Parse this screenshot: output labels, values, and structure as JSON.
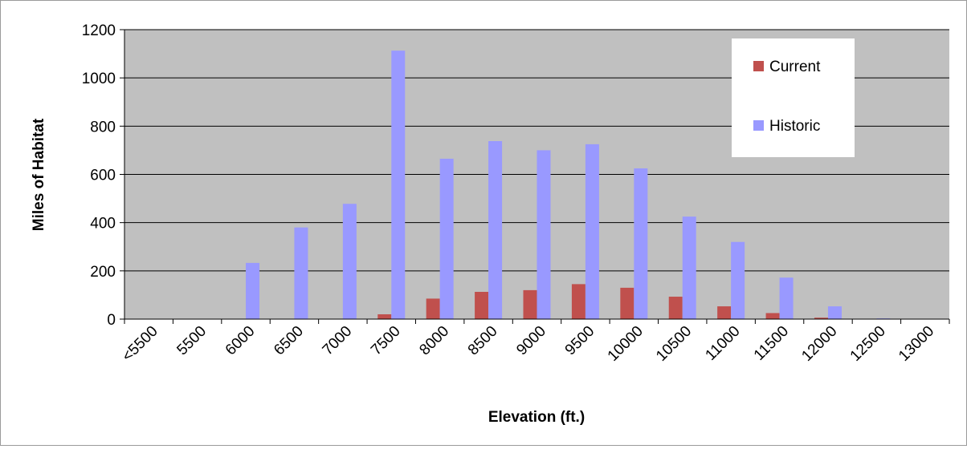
{
  "chart_data": {
    "type": "bar",
    "title": "",
    "xlabel": "Elevation (ft.)",
    "ylabel": "Miles of Habitat",
    "categories": [
      "<5500",
      "5500",
      "6000",
      "6500",
      "7000",
      "7500",
      "8000",
      "8500",
      "9000",
      "9500",
      "10000",
      "10500",
      "11000",
      "11500",
      "12000",
      "12500",
      "13000"
    ],
    "series": [
      {
        "name": "Current",
        "color": "#c0504d",
        "values": [
          0,
          0,
          0,
          0,
          0,
          20,
          85,
          113,
          120,
          145,
          130,
          93,
          53,
          25,
          6,
          0,
          0
        ]
      },
      {
        "name": "Historic",
        "color": "#9999ff",
        "values": [
          0,
          0,
          233,
          380,
          478,
          1113,
          665,
          738,
          700,
          725,
          625,
          425,
          320,
          172,
          53,
          3,
          0
        ]
      }
    ],
    "ylim": [
      0,
      1200
    ],
    "yticks": [
      0,
      200,
      400,
      600,
      800,
      1000,
      1200
    ],
    "grid": true,
    "plot_background": "#c0c0c0",
    "legend_position": "top-right"
  }
}
